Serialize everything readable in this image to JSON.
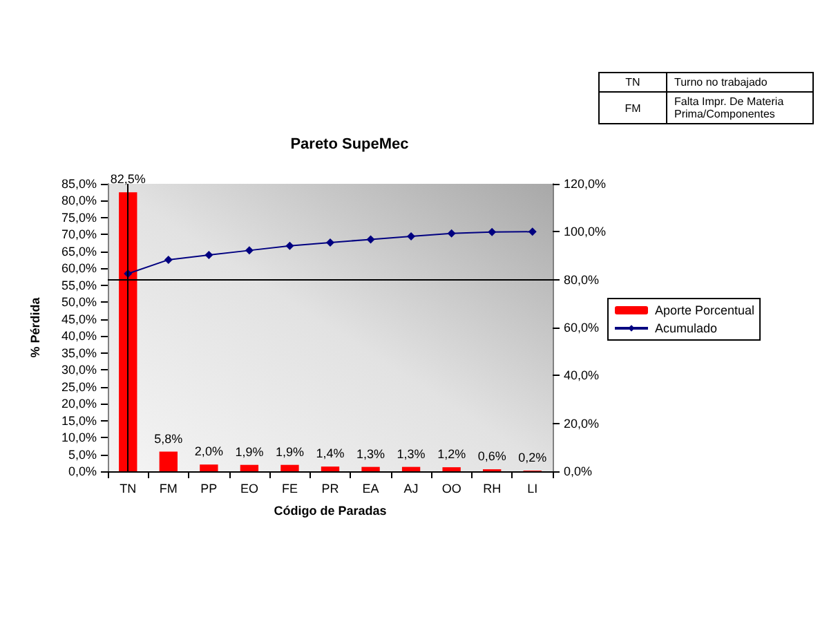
{
  "chart_data": {
    "type": "bar",
    "title": "Pareto SupeMec",
    "xlabel": "Código de Paradas",
    "ylabel": "% Pérdida",
    "annotations": [
      "TN",
      "Turno no trabajado",
      "FM",
      "Falta Impr. De Materia Prima/Componentes"
    ],
    "categories": [
      "TN",
      "FM",
      "PP",
      "EO",
      "FE",
      "PR",
      "EA",
      "AJ",
      "OO",
      "RH",
      "LI"
    ],
    "series": [
      {
        "name": "Aporte Porcentual",
        "color": "#ff0000",
        "values": [
          82.5,
          5.8,
          2.0,
          1.9,
          1.9,
          1.4,
          1.3,
          1.3,
          1.2,
          0.6,
          0.2
        ],
        "value_labels": [
          "82,5%",
          "5,8%",
          "2,0%",
          "1,9%",
          "1,9%",
          "1,4%",
          "1,3%",
          "1,3%",
          "1,2%",
          "0,6%",
          "0,2%"
        ]
      },
      {
        "name": "Acumulado",
        "type": "line",
        "axis": "y2",
        "color": "#000080",
        "marker": "diamond",
        "values": [
          82.5,
          88.3,
          90.3,
          92.2,
          94.1,
          95.5,
          96.8,
          98.1,
          99.3,
          99.9,
          100.0
        ]
      }
    ],
    "ylim": [
      0,
      85
    ],
    "yticks": [
      {
        "value": 0,
        "label": "0,0%"
      },
      {
        "value": 5,
        "label": "5,0%"
      },
      {
        "value": 10,
        "label": "10,0%"
      },
      {
        "value": 15,
        "label": "15,0%"
      },
      {
        "value": 20,
        "label": "20,0%"
      },
      {
        "value": 25,
        "label": "25,0%"
      },
      {
        "value": 30,
        "label": "30,0%"
      },
      {
        "value": 35,
        "label": "35,0%"
      },
      {
        "value": 40,
        "label": "40,0%"
      },
      {
        "value": 45,
        "label": "45,0%"
      },
      {
        "value": 50,
        "label": "50,0%"
      },
      {
        "value": 55,
        "label": "55,0%"
      },
      {
        "value": 60,
        "label": "60,0%"
      },
      {
        "value": 65,
        "label": "65,0%"
      },
      {
        "value": 70,
        "label": "70,0%"
      },
      {
        "value": 75,
        "label": "75,0%"
      },
      {
        "value": 80,
        "label": "80,0%"
      },
      {
        "value": 85,
        "label": "85,0%"
      }
    ],
    "y2lim": [
      0,
      120
    ],
    "y2ticks": [
      {
        "value": 0,
        "label": "0,0%"
      },
      {
        "value": 20,
        "label": "20,0%"
      },
      {
        "value": 40,
        "label": "40,0%"
      },
      {
        "value": 60,
        "label": "60,0%"
      },
      {
        "value": 80,
        "label": "80,0%"
      },
      {
        "value": 100,
        "label": "100,0%"
      },
      {
        "value": 120,
        "label": "120,0%"
      }
    ],
    "ref_lines": [
      {
        "axis": "y2",
        "value": 80,
        "color": "#000000"
      },
      {
        "axis": "x",
        "value": "TN",
        "color": "#000000"
      }
    ],
    "grid": false,
    "legend": "right"
  }
}
